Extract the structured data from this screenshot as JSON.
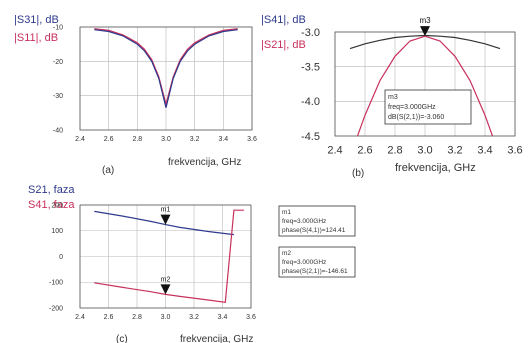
{
  "colors": {
    "s_blue": "#2e3a8c",
    "s_red": "#c8305c",
    "grid": "#b9b9b9",
    "text": "#333333"
  },
  "panel_a": {
    "ylabel_top": "|S31|, dB",
    "ylabel_bottom": "|S11|, dB",
    "xlabel": "frekvencija, GHz",
    "tag": "(a)"
  },
  "panel_b": {
    "ylabel_top": "|S41|, dB",
    "ylabel_bottom": "|S21|, dB",
    "xlabel": "frekvencija, GHz",
    "tag": "(b)",
    "marker": {
      "name": "m3",
      "lines": [
        "m3",
        "freq=3.000GHz",
        "dB(S(2,1))=-3.060"
      ]
    }
  },
  "panel_c": {
    "ylabel_top": "S21, faza",
    "ylabel_bottom": "S41, faza",
    "xlabel": "frekvencija, GHz",
    "tag": "(c)",
    "markers": [
      {
        "name": "m1",
        "lines": [
          "m1",
          "freq=3.000GHz",
          "phase(S(4,1))=124.41"
        ]
      },
      {
        "name": "m2",
        "lines": [
          "m2",
          "freq=3.000GHz",
          "phase(S(2,1))=-146.61"
        ]
      }
    ]
  },
  "chart_data": [
    {
      "type": "line",
      "panel": "a",
      "xlim": [
        2.4,
        3.6
      ],
      "ylim": [
        -40,
        -10
      ],
      "xticks": [
        2.4,
        2.6,
        2.8,
        3.0,
        3.2,
        3.4,
        3.6
      ],
      "xtick_labels": [
        "2.4",
        "2.6",
        "2.8",
        "3.0",
        "3.2",
        "3.4",
        "3.6"
      ],
      "yticks": [
        -10,
        -20,
        -30,
        -40
      ],
      "ytick_labels": [
        "-10",
        "-20",
        "-30",
        "-40"
      ],
      "grid": true,
      "series": [
        {
          "color": "#c8305c",
          "x": [
            2.5,
            2.6,
            2.7,
            2.8,
            2.85,
            2.9,
            2.95,
            3.0,
            3.05,
            3.1,
            3.15,
            3.2,
            3.3,
            3.4,
            3.5
          ],
          "y": [
            -10.5,
            -11,
            -12.3,
            -14.6,
            -16.5,
            -19.5,
            -24.5,
            -32.5,
            -24.5,
            -19.5,
            -16.5,
            -14.6,
            -12.3,
            -11,
            -10.5
          ]
        },
        {
          "color": "#2e3a8c",
          "x": [
            2.5,
            2.6,
            2.7,
            2.8,
            2.85,
            2.9,
            2.95,
            3.0,
            3.05,
            3.1,
            3.15,
            3.2,
            3.3,
            3.4,
            3.5
          ],
          "y": [
            -10.8,
            -11.3,
            -12.6,
            -15,
            -17,
            -20,
            -25,
            -33.5,
            -25,
            -20,
            -17,
            -15,
            -12.6,
            -11.3,
            -10.8
          ]
        }
      ]
    },
    {
      "type": "line",
      "panel": "b",
      "xlim": [
        2.4,
        3.6
      ],
      "ylim": [
        -4.5,
        -3.0
      ],
      "xticks": [
        2.4,
        2.6,
        2.8,
        3.0,
        3.2,
        3.4,
        3.6
      ],
      "xtick_labels": [
        "2.4",
        "2.6",
        "2.8",
        "3.0",
        "3.2",
        "3.4",
        "3.6"
      ],
      "yticks": [
        -3.0,
        -3.5,
        -4.0,
        -4.5
      ],
      "ytick_labels": [
        "-3.0",
        "-3.5",
        "-4.0",
        "-4.5"
      ],
      "grid": true,
      "series": [
        {
          "color": "#333333",
          "x": [
            2.5,
            2.6,
            2.7,
            2.8,
            2.9,
            3.0,
            3.1,
            3.2,
            3.3,
            3.4,
            3.5
          ],
          "y": [
            -3.24,
            -3.17,
            -3.12,
            -3.08,
            -3.06,
            -3.05,
            -3.06,
            -3.08,
            -3.12,
            -3.17,
            -3.24
          ]
        },
        {
          "color": "#c8305c",
          "x": [
            2.55,
            2.6,
            2.7,
            2.8,
            2.9,
            3.0,
            3.1,
            3.2,
            3.3,
            3.4,
            3.45
          ],
          "y": [
            -4.5,
            -4.2,
            -3.7,
            -3.35,
            -3.13,
            -3.06,
            -3.13,
            -3.35,
            -3.7,
            -4.2,
            -4.5
          ]
        }
      ]
    },
    {
      "type": "line",
      "panel": "c",
      "xlim": [
        2.4,
        3.6
      ],
      "ylim": [
        -200,
        200
      ],
      "xticks": [
        2.4,
        2.6,
        2.8,
        3.0,
        3.2,
        3.4,
        3.6
      ],
      "xtick_labels": [
        "2.4",
        "2.6",
        "2.8",
        "3.0",
        "3.2",
        "3.4",
        "3.6"
      ],
      "yticks": [
        200,
        100,
        0,
        -100,
        -200
      ],
      "ytick_labels": [
        "200",
        "100",
        "0",
        "-100",
        "-200"
      ],
      "grid": true,
      "series": [
        {
          "color": "#2e3a8c",
          "x": [
            2.5,
            2.7,
            2.9,
            3.0,
            3.1,
            3.3,
            3.48
          ],
          "y": [
            175,
            157,
            136,
            124,
            113,
            97,
            85
          ]
        },
        {
          "color": "#c8305c",
          "x": [
            2.5,
            2.7,
            2.9,
            3.0,
            3.1,
            3.3,
            3.42,
            3.48,
            3.5,
            3.55
          ],
          "y": [
            -102,
            -120,
            -137,
            -147,
            -155,
            -169,
            -178,
            180,
            180,
            180
          ]
        }
      ]
    }
  ]
}
